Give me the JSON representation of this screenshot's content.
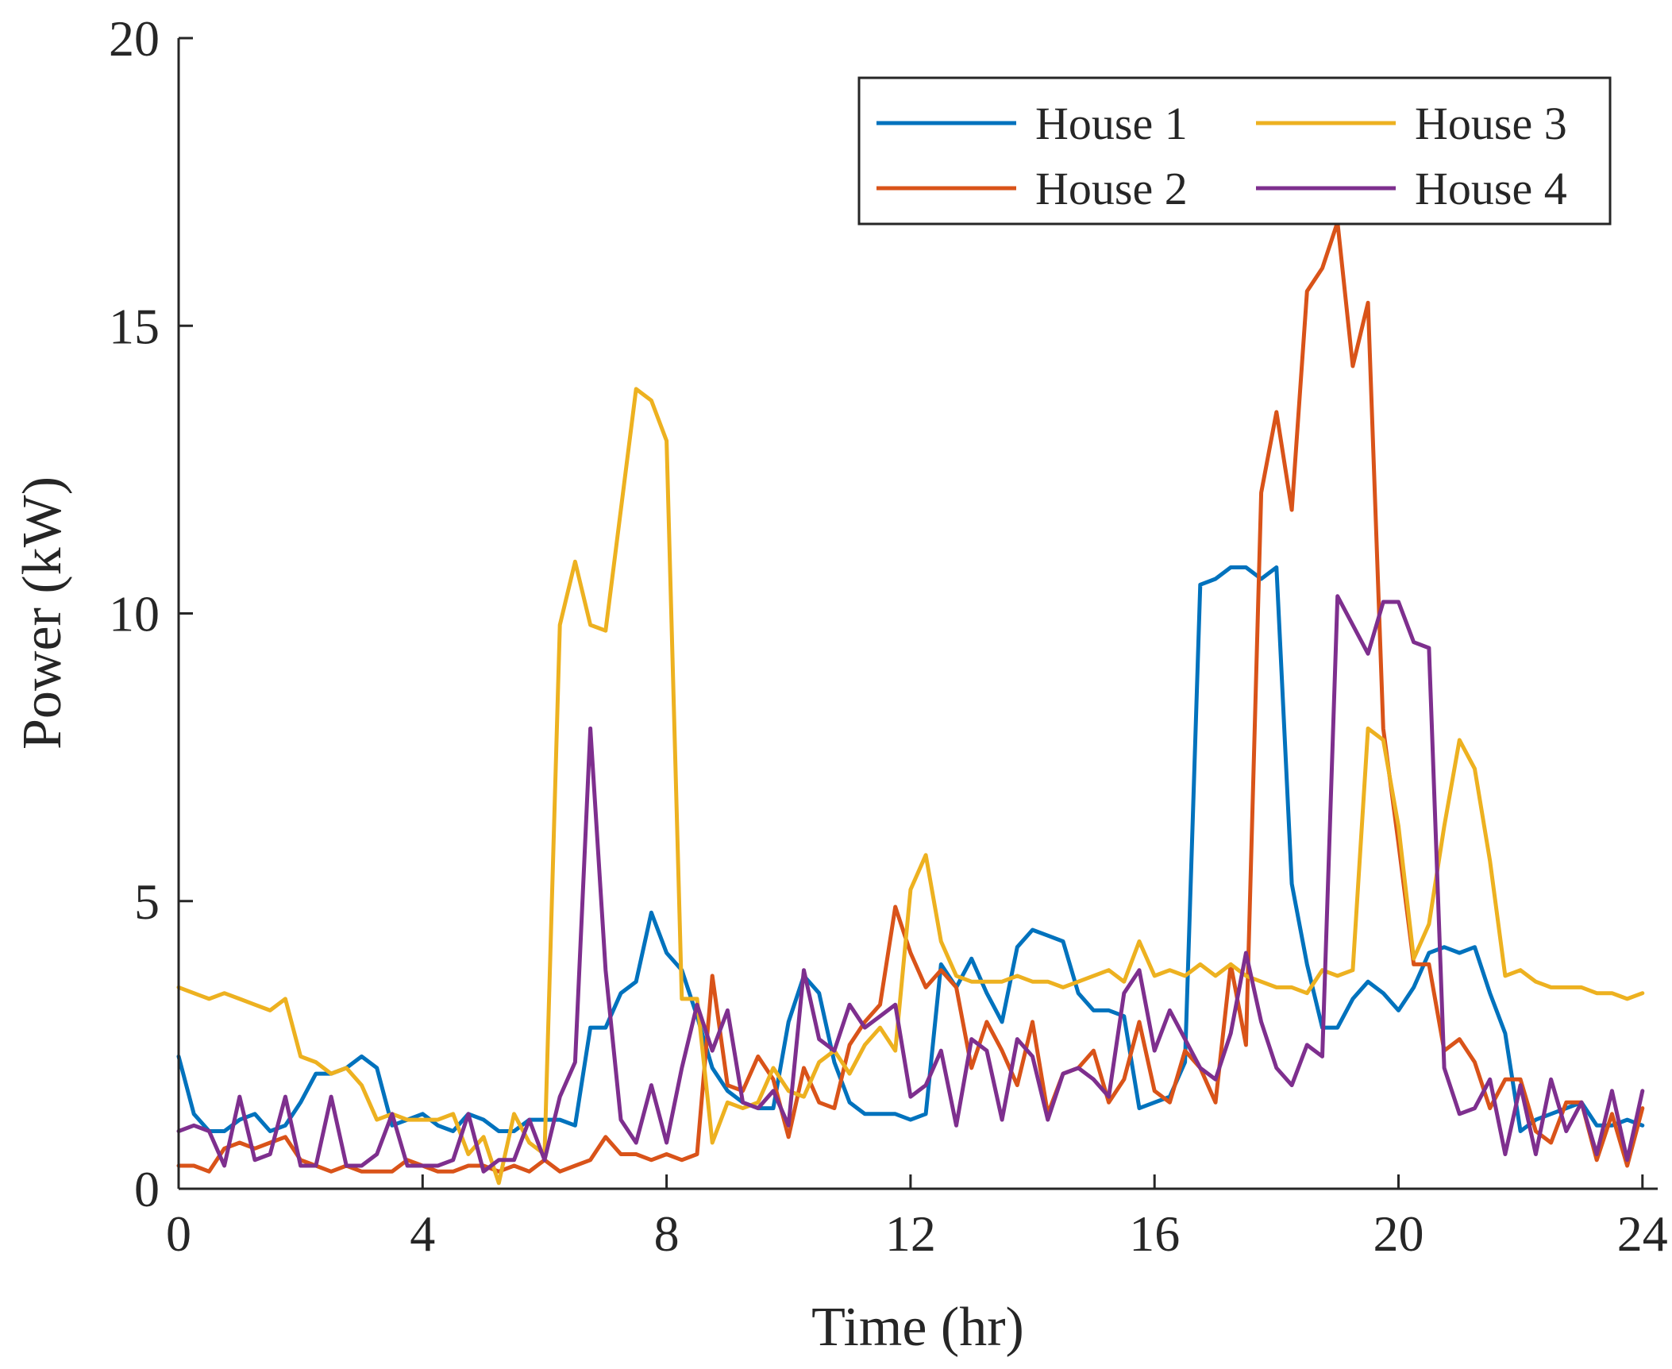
{
  "chart_data": {
    "type": "line",
    "title": "",
    "xlabel": "Time (hr)",
    "ylabel": "Power (kW)",
    "xlim": [
      0,
      24.25
    ],
    "ylim": [
      0,
      20
    ],
    "xticks": [
      0,
      4,
      8,
      12,
      16,
      20,
      24
    ],
    "yticks": [
      0,
      5,
      10,
      15,
      20
    ],
    "xtick_labels": [
      "0",
      "4",
      "8",
      "12",
      "16",
      "20",
      "24"
    ],
    "ytick_labels": [
      "0",
      "5",
      "10",
      "15",
      "20"
    ],
    "legend_position": "top-right",
    "legend_columns": 2,
    "x": [
      0,
      0.25,
      0.5,
      0.75,
      1,
      1.25,
      1.5,
      1.75,
      2,
      2.25,
      2.5,
      2.75,
      3,
      3.25,
      3.5,
      3.75,
      4,
      4.25,
      4.5,
      4.75,
      5,
      5.25,
      5.5,
      5.75,
      6,
      6.25,
      6.5,
      6.75,
      7,
      7.25,
      7.5,
      7.75,
      8,
      8.25,
      8.5,
      8.75,
      9,
      9.25,
      9.5,
      9.75,
      10,
      10.25,
      10.5,
      10.75,
      11,
      11.25,
      11.5,
      11.75,
      12,
      12.25,
      12.5,
      12.75,
      13,
      13.25,
      13.5,
      13.75,
      14,
      14.25,
      14.5,
      14.75,
      15,
      15.25,
      15.5,
      15.75,
      16,
      16.25,
      16.5,
      16.75,
      17,
      17.25,
      17.5,
      17.75,
      18,
      18.25,
      18.5,
      18.75,
      19,
      19.25,
      19.5,
      19.75,
      20,
      20.25,
      20.5,
      20.75,
      21,
      21.25,
      21.5,
      21.75,
      22,
      22.25,
      22.5,
      22.75,
      23,
      23.25,
      23.5,
      23.75,
      24
    ],
    "series": [
      {
        "name": "House 1",
        "color": "#0072BD",
        "values": [
          2.3,
          1.3,
          1.0,
          1.0,
          1.2,
          1.3,
          1.0,
          1.1,
          1.5,
          2.0,
          2.0,
          2.1,
          2.3,
          2.1,
          1.1,
          1.2,
          1.3,
          1.1,
          1.0,
          1.3,
          1.2,
          1.0,
          1.0,
          1.2,
          1.2,
          1.2,
          1.1,
          2.8,
          2.8,
          3.4,
          3.6,
          4.8,
          4.1,
          3.8,
          3.0,
          2.1,
          1.7,
          1.5,
          1.4,
          1.4,
          2.9,
          3.7,
          3.4,
          2.2,
          1.5,
          1.3,
          1.3,
          1.3,
          1.2,
          1.3,
          3.9,
          3.5,
          4.0,
          3.4,
          2.9,
          4.2,
          4.5,
          4.4,
          4.3,
          3.4,
          3.1,
          3.1,
          3.0,
          1.4,
          1.5,
          1.6,
          2.2,
          10.5,
          10.6,
          10.8,
          10.8,
          10.6,
          10.8,
          5.3,
          3.9,
          2.8,
          2.8,
          3.3,
          3.6,
          3.4,
          3.1,
          3.5,
          4.1,
          4.2,
          4.1,
          4.2,
          3.4,
          2.7,
          1.0,
          1.2,
          1.3,
          1.4,
          1.5,
          1.1,
          1.1,
          1.2,
          1.1
        ]
      },
      {
        "name": "House 2",
        "color": "#D95319",
        "values": [
          0.4,
          0.4,
          0.3,
          0.7,
          0.8,
          0.7,
          0.8,
          0.9,
          0.5,
          0.4,
          0.3,
          0.4,
          0.3,
          0.3,
          0.3,
          0.5,
          0.4,
          0.3,
          0.3,
          0.4,
          0.4,
          0.3,
          0.4,
          0.3,
          0.5,
          0.3,
          0.4,
          0.5,
          0.9,
          0.6,
          0.6,
          0.5,
          0.6,
          0.5,
          0.6,
          3.7,
          1.8,
          1.7,
          2.3,
          1.9,
          0.9,
          2.1,
          1.5,
          1.4,
          2.5,
          2.9,
          3.2,
          4.9,
          4.1,
          3.5,
          3.8,
          3.5,
          2.1,
          2.9,
          2.4,
          1.8,
          2.9,
          1.3,
          2.0,
          2.1,
          2.4,
          1.5,
          1.9,
          2.9,
          1.7,
          1.5,
          2.4,
          2.1,
          1.5,
          3.9,
          2.5,
          12.1,
          13.5,
          11.8,
          15.6,
          16.0,
          16.8,
          14.3,
          15.4,
          8.0,
          6.0,
          3.9,
          3.9,
          2.4,
          2.6,
          2.2,
          1.4,
          1.9,
          1.9,
          1.0,
          0.8,
          1.5,
          1.5,
          0.5,
          1.3,
          0.4,
          1.4
        ]
      },
      {
        "name": "House 3",
        "color": "#EDB120",
        "values": [
          3.5,
          3.4,
          3.3,
          3.4,
          3.3,
          3.2,
          3.1,
          3.3,
          2.3,
          2.2,
          2.0,
          2.1,
          1.8,
          1.2,
          1.3,
          1.2,
          1.2,
          1.2,
          1.3,
          0.6,
          0.9,
          0.1,
          1.3,
          0.8,
          0.6,
          9.8,
          10.9,
          9.8,
          9.7,
          11.8,
          13.9,
          13.7,
          13.0,
          3.3,
          3.3,
          0.8,
          1.5,
          1.4,
          1.5,
          2.1,
          1.7,
          1.6,
          2.2,
          2.4,
          2.0,
          2.5,
          2.8,
          2.4,
          5.2,
          5.8,
          4.3,
          3.7,
          3.6,
          3.6,
          3.6,
          3.7,
          3.6,
          3.6,
          3.5,
          3.6,
          3.7,
          3.8,
          3.6,
          4.3,
          3.7,
          3.8,
          3.7,
          3.9,
          3.7,
          3.9,
          3.7,
          3.6,
          3.5,
          3.5,
          3.4,
          3.8,
          3.7,
          3.8,
          8.0,
          7.8,
          6.3,
          4.0,
          4.6,
          6.3,
          7.8,
          7.3,
          5.7,
          3.7,
          3.8,
          3.6,
          3.5,
          3.5,
          3.5,
          3.4,
          3.4,
          3.3,
          3.4
        ]
      },
      {
        "name": "House 4",
        "color": "#7E2F8E",
        "values": [
          1.0,
          1.1,
          1.0,
          0.4,
          1.6,
          0.5,
          0.6,
          1.6,
          0.4,
          0.4,
          1.6,
          0.4,
          0.4,
          0.6,
          1.3,
          0.4,
          0.4,
          0.4,
          0.5,
          1.3,
          0.3,
          0.5,
          0.5,
          1.2,
          0.5,
          1.6,
          2.2,
          8.0,
          3.8,
          1.2,
          0.8,
          1.8,
          0.8,
          2.1,
          3.2,
          2.4,
          3.1,
          1.5,
          1.4,
          1.7,
          1.1,
          3.8,
          2.6,
          2.4,
          3.2,
          2.8,
          3.0,
          3.2,
          1.6,
          1.8,
          2.4,
          1.1,
          2.6,
          2.4,
          1.2,
          2.6,
          2.3,
          1.2,
          2.0,
          2.1,
          1.9,
          1.6,
          3.4,
          3.8,
          2.4,
          3.1,
          2.6,
          2.1,
          1.9,
          2.7,
          4.1,
          2.9,
          2.1,
          1.8,
          2.5,
          2.3,
          10.3,
          9.8,
          9.3,
          10.2,
          10.2,
          9.5,
          9.4,
          2.1,
          1.3,
          1.4,
          1.9,
          0.6,
          1.8,
          0.6,
          1.9,
          1.0,
          1.5,
          0.6,
          1.7,
          0.5,
          1.7
        ]
      }
    ]
  }
}
